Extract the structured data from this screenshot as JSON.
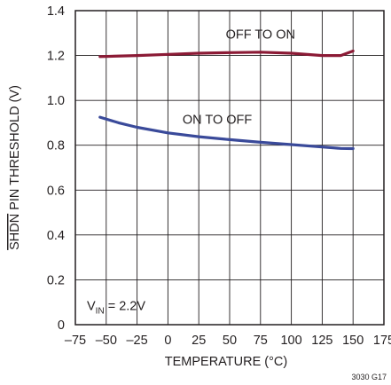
{
  "chart_data": {
    "type": "line",
    "xlabel": "TEMPERATURE (°C)",
    "ylabel_overbar": "SHDN",
    "ylabel_rest": " PIN THRESHOLD (V)",
    "xlim": [
      -75,
      175
    ],
    "ylim": [
      0,
      1.4
    ],
    "xticks": [
      -75,
      -50,
      -25,
      0,
      25,
      50,
      75,
      100,
      125,
      150,
      175
    ],
    "xtick_labels": [
      "–75",
      "–50",
      "–25",
      "0",
      "25",
      "50",
      "75",
      "100",
      "125",
      "150",
      "175"
    ],
    "yticks": [
      0,
      0.2,
      0.4,
      0.6,
      0.8,
      1.0,
      1.2,
      1.4
    ],
    "ytick_labels": [
      "0",
      "0.2",
      "0.4",
      "0.6",
      "0.8",
      "1.0",
      "1.2",
      "1.4"
    ],
    "grid": true,
    "series": [
      {
        "name": "OFF TO ON",
        "color": "#8b1a35",
        "x": [
          -55,
          -25,
          0,
          25,
          50,
          75,
          100,
          125,
          140,
          150
        ],
        "y": [
          1.195,
          1.2,
          1.205,
          1.21,
          1.213,
          1.215,
          1.21,
          1.2,
          1.2,
          1.22
        ]
      },
      {
        "name": "ON TO OFF",
        "color": "#3a4a9a",
        "x": [
          -55,
          -40,
          -25,
          0,
          25,
          50,
          75,
          100,
          125,
          140,
          150
        ],
        "y": [
          0.925,
          0.9,
          0.88,
          0.855,
          0.838,
          0.825,
          0.813,
          0.803,
          0.792,
          0.786,
          0.785
        ]
      }
    ],
    "annotations": {
      "off_to_on": "OFF TO ON",
      "on_to_off": "ON TO OFF",
      "vin_prefix": "V",
      "vin_sub": "IN",
      "vin_suffix": " = 2.2V"
    }
  },
  "figure_id": "3030 G17"
}
